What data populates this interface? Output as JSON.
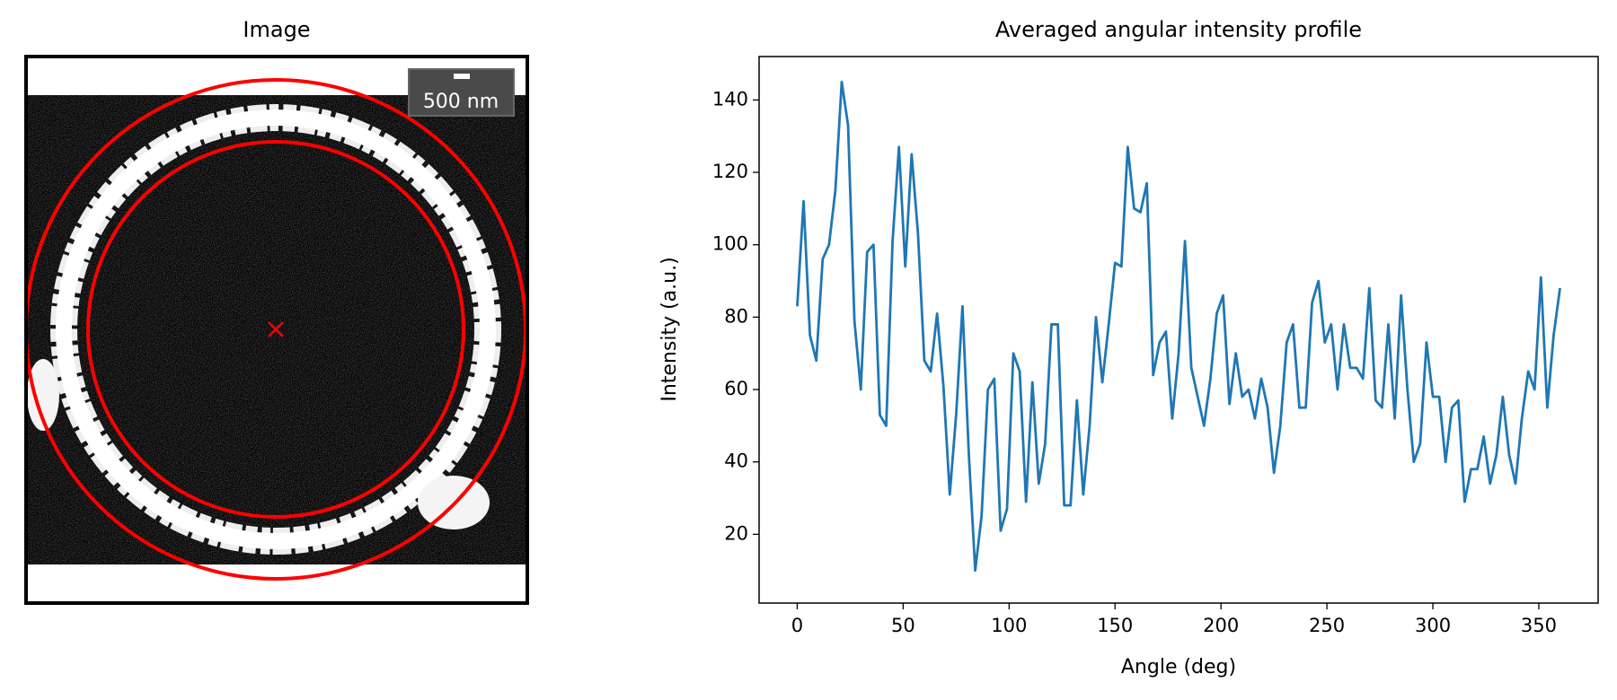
{
  "image_panel": {
    "title": "Image",
    "scale_bar_label": "500 nm"
  },
  "chart_data": {
    "type": "line",
    "title": "Averaged angular intensity profile",
    "x_label": "Angle (deg)",
    "y_label": "Intensity (a.u.)",
    "x": [
      0,
      3,
      6,
      9,
      12,
      15,
      18,
      21,
      24,
      27,
      30,
      33,
      36,
      39,
      42,
      45,
      48,
      51,
      54,
      57,
      60,
      63,
      66,
      69,
      72,
      75,
      78,
      81,
      84,
      87,
      90,
      93,
      96,
      99,
      102,
      105,
      108,
      111,
      114,
      117,
      120,
      123,
      126,
      129,
      132,
      135,
      138,
      141,
      144,
      147,
      150,
      153,
      156,
      159,
      162,
      165,
      168,
      171,
      174,
      177,
      180,
      183,
      186,
      189,
      192,
      195,
      198,
      201,
      204,
      207,
      210,
      213,
      216,
      219,
      222,
      225,
      228,
      231,
      234,
      237,
      240,
      243,
      246,
      249,
      252,
      255,
      258,
      261,
      264,
      267,
      270,
      273,
      276,
      279,
      282,
      285,
      288,
      291,
      294,
      297,
      300,
      303,
      306,
      309,
      312,
      315,
      318,
      321,
      324,
      327,
      330,
      333,
      336,
      339,
      342,
      345,
      348,
      351,
      354,
      357,
      360
    ],
    "series": [
      {
        "name": "profile",
        "color": "#1f77b4",
        "values": [
          83,
          112,
          75,
          68,
          96,
          100,
          115,
          145,
          133,
          79,
          60,
          98,
          100,
          53,
          50,
          101,
          127,
          94,
          125,
          103,
          68,
          65,
          81,
          61,
          31,
          53,
          83,
          42,
          10,
          25,
          60,
          63,
          21,
          27,
          70,
          65,
          29,
          62,
          34,
          45,
          78,
          78,
          28,
          28,
          57,
          31,
          50,
          80,
          62,
          78,
          95,
          94,
          127,
          110,
          109,
          117,
          64,
          73,
          76,
          52,
          70,
          101,
          66,
          58,
          50,
          63,
          81,
          86,
          56,
          70,
          58,
          60,
          52,
          63,
          55,
          37,
          50,
          73,
          78,
          55,
          55,
          84,
          90,
          73,
          78,
          60,
          78,
          66,
          66,
          63,
          88,
          57,
          55,
          78,
          52,
          86,
          60,
          40,
          45,
          73,
          58,
          58,
          40,
          55,
          57,
          29,
          38,
          38,
          47,
          34,
          42,
          58,
          42,
          34,
          52,
          65,
          60,
          91,
          55,
          75,
          88
        ]
      }
    ],
    "xlim": [
      -18,
      378
    ],
    "ylim": [
      1,
      152
    ],
    "xticks": [
      0,
      50,
      100,
      150,
      200,
      250,
      300,
      350
    ],
    "yticks": [
      20,
      40,
      60,
      80,
      100,
      120,
      140
    ]
  }
}
